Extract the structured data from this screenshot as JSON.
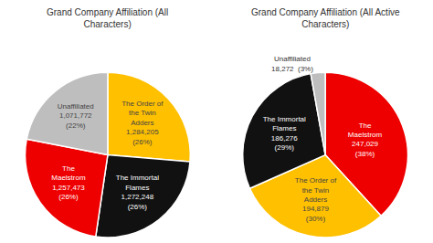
{
  "chart_data": [
    {
      "type": "pie",
      "title": "Grand Company Affiliation (All\nCharacters)",
      "categories": [
        "The Order of\nthe Twin\nAdders",
        "The Immortal\nFlames",
        "The\nMaelstrom",
        "Unaffiliated"
      ],
      "values": [
        1284205,
        1272248,
        1257473,
        1071772
      ],
      "value_labels": [
        "1,284,205\n(26%)",
        "1,272,248\n(26%)",
        "1,257,473\n(26%)",
        "1,071,772\n(22%)"
      ],
      "colors": [
        "#FFC000",
        "#111111",
        "#EE0000",
        "#BEBEBE"
      ]
    },
    {
      "type": "pie",
      "title": "Grand Company Affiliation (All Active\nCharacters)",
      "categories": [
        "The\nMaelstrom",
        "The Order of\nthe Twin\nAdders",
        "The Immortal\nFlames",
        "Unaffiliated"
      ],
      "values": [
        247029,
        194879,
        186276,
        18272
      ],
      "value_labels": [
        "247,029\n(38%)",
        "194,879\n(30%)",
        "186,276\n(29%)",
        "18,272  (3%)"
      ],
      "colors": [
        "#EE0000",
        "#FFC000",
        "#111111",
        "#BEBEBE"
      ]
    }
  ]
}
